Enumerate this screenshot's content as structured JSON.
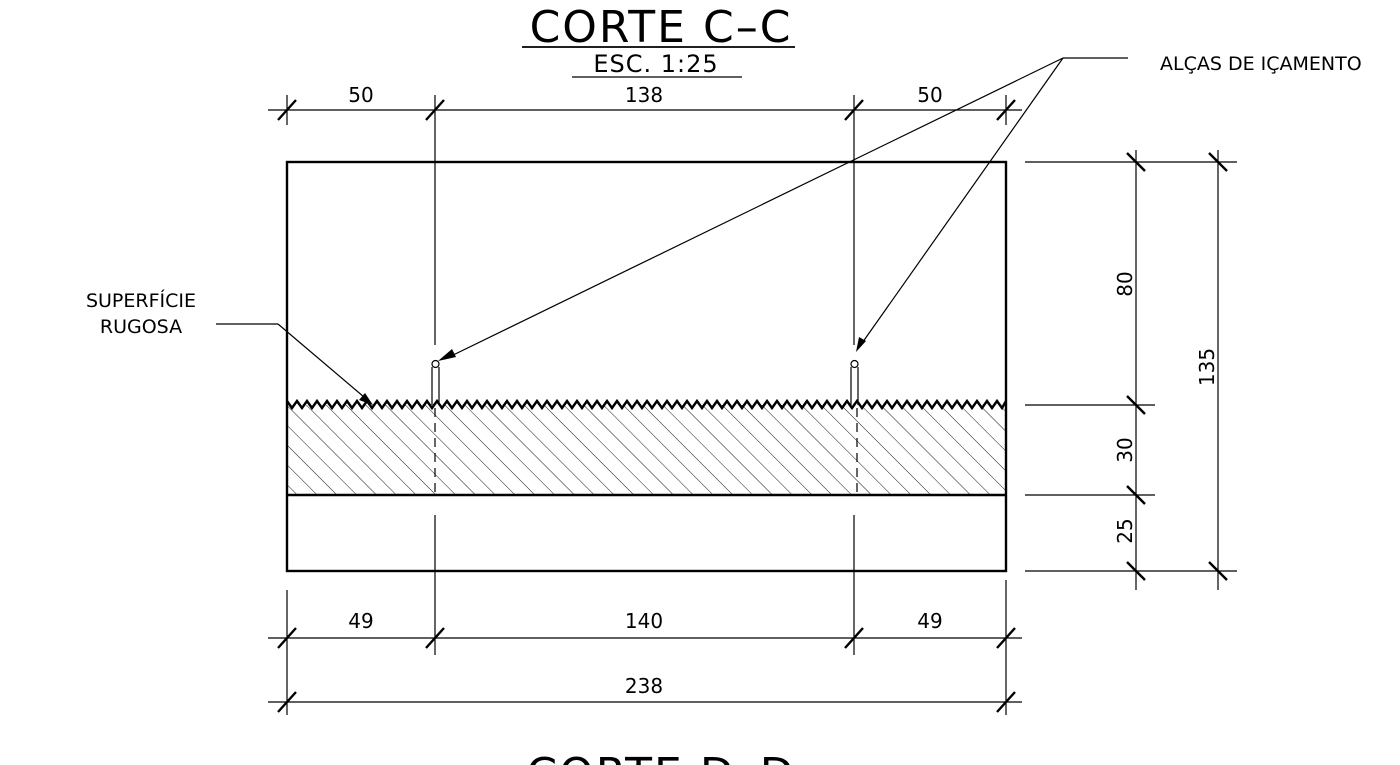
{
  "title": "CORTE C–C",
  "scale": "ESC. 1:25",
  "next_title": "CORTE D–D",
  "labels": {
    "lifting": "ALÇAS DE IÇAMENTO",
    "rough_line1": "SUPERFÍCIE",
    "rough_line2": "RUGOSA"
  },
  "dims": {
    "top": [
      "50",
      "138",
      "50"
    ],
    "bottom": [
      "49",
      "140",
      "49"
    ],
    "total_width": "238",
    "right": [
      "80",
      "30",
      "25"
    ],
    "total_height": "135"
  }
}
